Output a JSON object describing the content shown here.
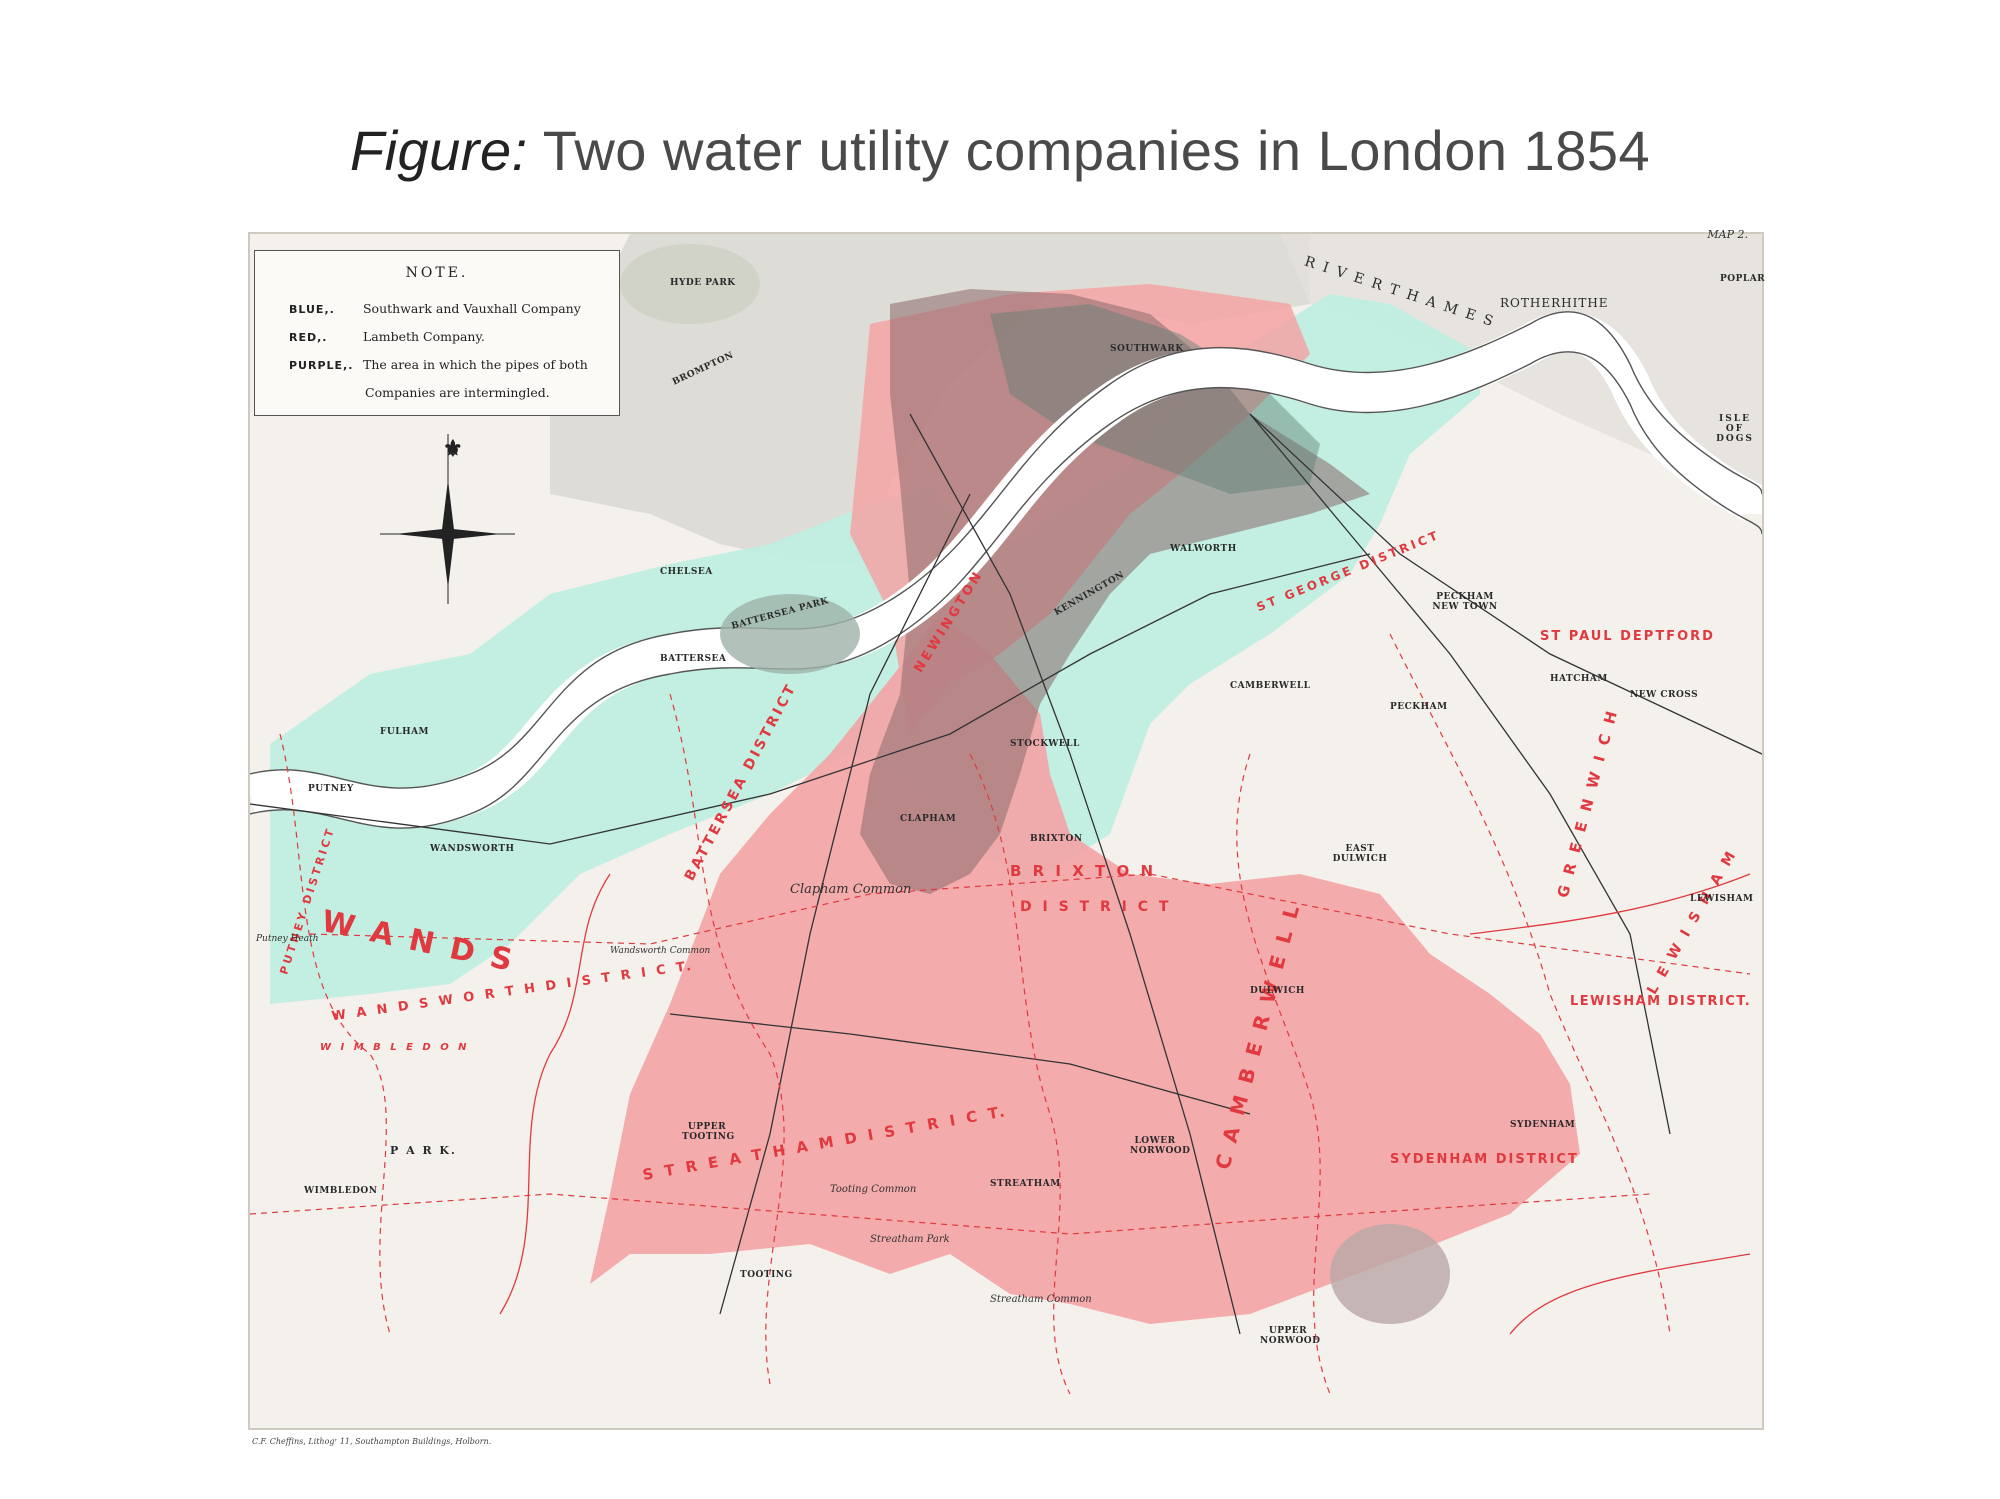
{
  "caption": {
    "lead": "Figure:",
    "text": "Two water utility companies in London 1854"
  },
  "map": {
    "map_number": "MAP 2.",
    "imprint": "C.F. Cheffins, Lithogʳ 11, Southampton Buildings, Holborn.",
    "colors": {
      "southwark_vauxhall_blue": "#bfeee0",
      "lambeth_red": "#f4a3a5",
      "intermingled_purple": "#8a6a6b",
      "boundary_red": "#e0393f",
      "river_line": "#555555"
    },
    "legend": {
      "title": "NOTE.",
      "entries": [
        {
          "key": "BLUE,.",
          "value": "Southwark and Vauxhall Company"
        },
        {
          "key": "RED,.",
          "value": "Lambeth Company."
        },
        {
          "key": "PURPLE,.",
          "value": "The area in which the pipes of both"
        }
      ],
      "continuation": "Companies are intermingled."
    },
    "district_labels": {
      "wandsworth": "W A N D S",
      "wandsworth_district": "W A N D S W O R T H   D I S T R I C T.",
      "putney_district": "PUTNEY DISTRICT",
      "battersea_district": "BATTERSEA  DISTRICT",
      "brixton": "B R I X T O N",
      "brixton_district": "D I S T R I C T",
      "streatham_district": "S T R E A T H A M   D I S T R I C T.",
      "camberwell": "C A M B E R W E L L",
      "lewisham_district": "LEWISHAM DISTRICT.",
      "st_paul_deptford": "ST PAUL DEPTFORD",
      "sydenham_district": "SYDENHAM DISTRICT",
      "greenwich": "G R E E N W I C H",
      "newington": "NEWINGTON",
      "st_georges_district": "ST GEORGE DISTRICT",
      "wimbledon": "W I M B L E D O N",
      "rotherhithe_label": "ROTHERHITHE",
      "river_thames": "R I V E R   T H A M E S",
      "lewisham_m": "L E W I S H A M"
    },
    "place_labels": {
      "hyde_park": "HYDE PARK",
      "brompton": "BROMPTON",
      "chelsea": "CHELSEA",
      "fulham": "FULHAM",
      "putney": "PUTNEY",
      "battersea": "BATTERSEA",
      "battersea_park": "BATTERSEA PARK",
      "wandsworth_town": "WANDSWORTH",
      "clapham": "CLAPHAM",
      "stockwell": "STOCKWELL",
      "brixton_town": "BRIXTON",
      "kennington": "KENNINGTON",
      "walworth": "WALWORTH",
      "southwark": "SOUTHWARK",
      "camberwell_town": "CAMBERWELL",
      "peckham": "PECKHAM",
      "peckham_new_town": "PECKHAM NEW TOWN",
      "hatcham": "HATCHAM",
      "new_cross": "NEW CROSS",
      "dulwich": "DULWICH",
      "east_dulwich": "EAST DULWICH",
      "sydenham": "SYDENHAM",
      "lewisham": "LEWISHAM",
      "lower_norwood": "LOWER NORWOOD",
      "upper_norwood": "UPPER NORWOOD",
      "streatham": "STREATHAM",
      "upper_tooting": "UPPER TOOTING",
      "tooting": "TOOTING",
      "wimbledon_town": "WIMBLEDON",
      "wimbledon_park": "P A R K.",
      "isle_of_dogs": "ISLE OF DOGS",
      "poplar": "POPLAR",
      "clapham_common": "Clapham Common",
      "tooting_common": "Tooting Common",
      "streatham_common": "Streatham Common",
      "streatham_park": "Streatham Park",
      "putney_heath": "Putney Heath",
      "wandsworth_common": "Wandsworth Common"
    }
  }
}
